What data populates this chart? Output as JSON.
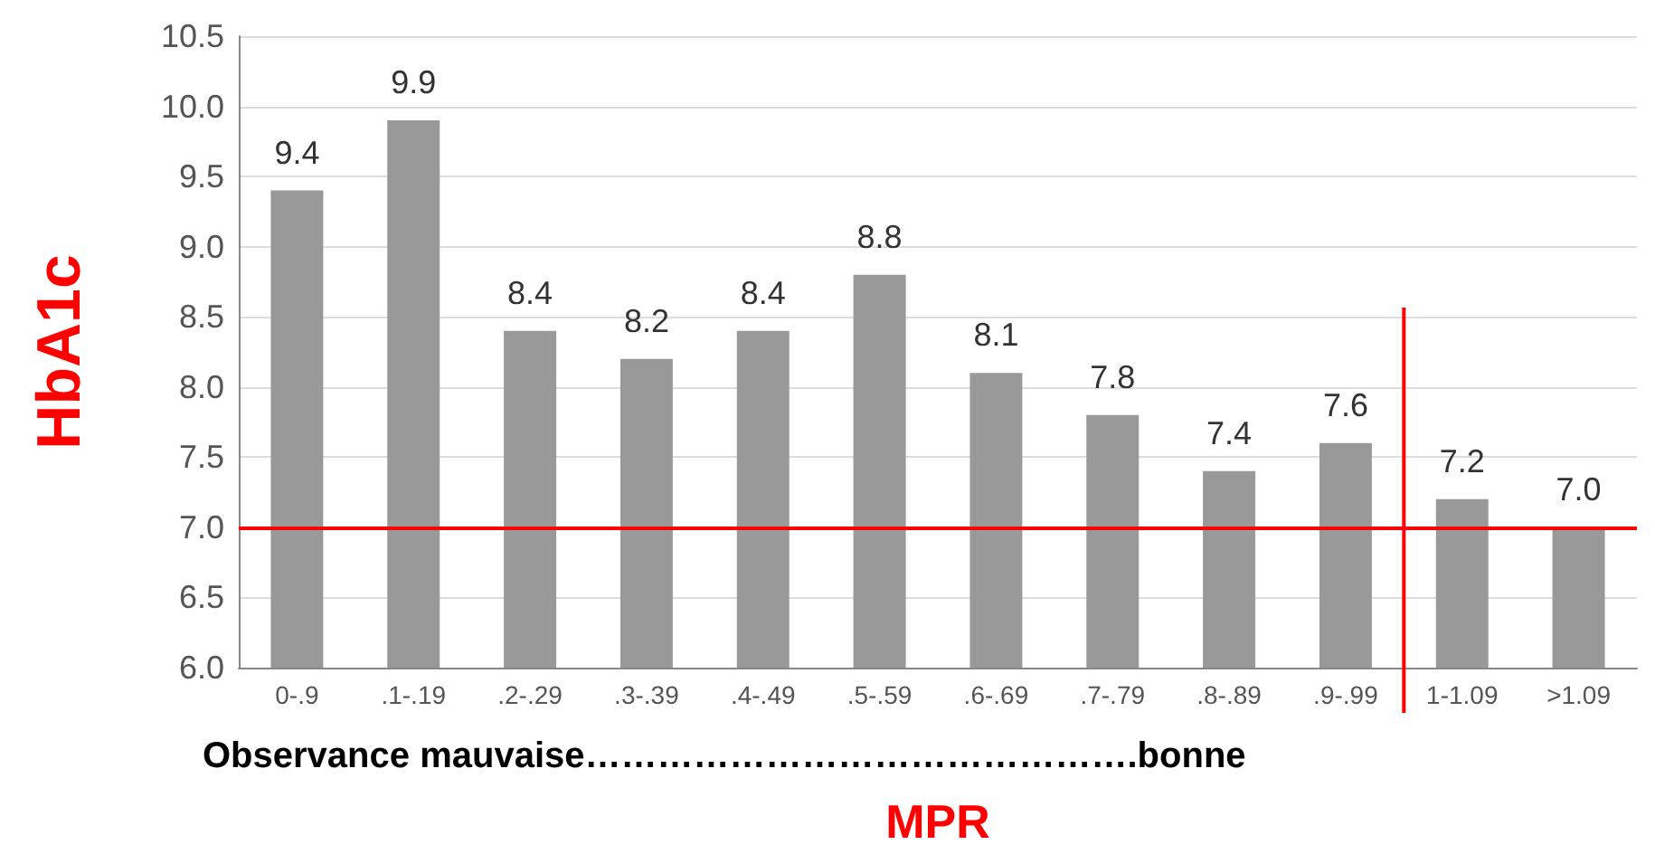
{
  "chart_data": {
    "type": "bar",
    "xlabel": "MPR",
    "ylabel": "HbA1c",
    "categories": [
      "0-.9",
      ".1-.19",
      ".2-.29",
      ".3-.39",
      ".4-.49",
      ".5-.59",
      ".6-.69",
      ".7-.79",
      ".8-.89",
      ".9-.99",
      "1-1.09",
      ">1.09"
    ],
    "values": [
      9.4,
      9.9,
      8.4,
      8.2,
      8.4,
      8.8,
      8.1,
      7.8,
      7.4,
      7.6,
      7.2,
      7.0
    ],
    "color": "#999999",
    "value_labels": [
      "9.4",
      "9.9",
      "8.4",
      "8.2",
      "8.4",
      "8.8",
      "8.1",
      "7.8",
      "7.4",
      "7.6",
      "7.2",
      "7.0"
    ],
    "grid": "y",
    "ylim": [
      6,
      10.5
    ],
    "yticks": [
      {
        "value": 6,
        "label": "6.0"
      },
      {
        "value": 6.5,
        "label": "6.5"
      },
      {
        "value": 7,
        "label": "7.0"
      },
      {
        "value": 7.5,
        "label": "7.5"
      },
      {
        "value": 8,
        "label": "8.0"
      },
      {
        "value": 8.5,
        "label": "8.5"
      },
      {
        "value": 9,
        "label": "9.0"
      },
      {
        "value": 9.5,
        "label": "9.5"
      },
      {
        "value": 10,
        "label": "10.0"
      },
      {
        "value": 10.5,
        "label": "10.5"
      }
    ],
    "ref_lines": [
      {
        "axis": "y",
        "value": 7.0,
        "color": "#ff0000"
      },
      {
        "axis": "x",
        "value": "1-1.09",
        "color": "#ff0000"
      }
    ],
    "annotations": [
      "Observance mauvaise……………………………………….bonne"
    ]
  }
}
